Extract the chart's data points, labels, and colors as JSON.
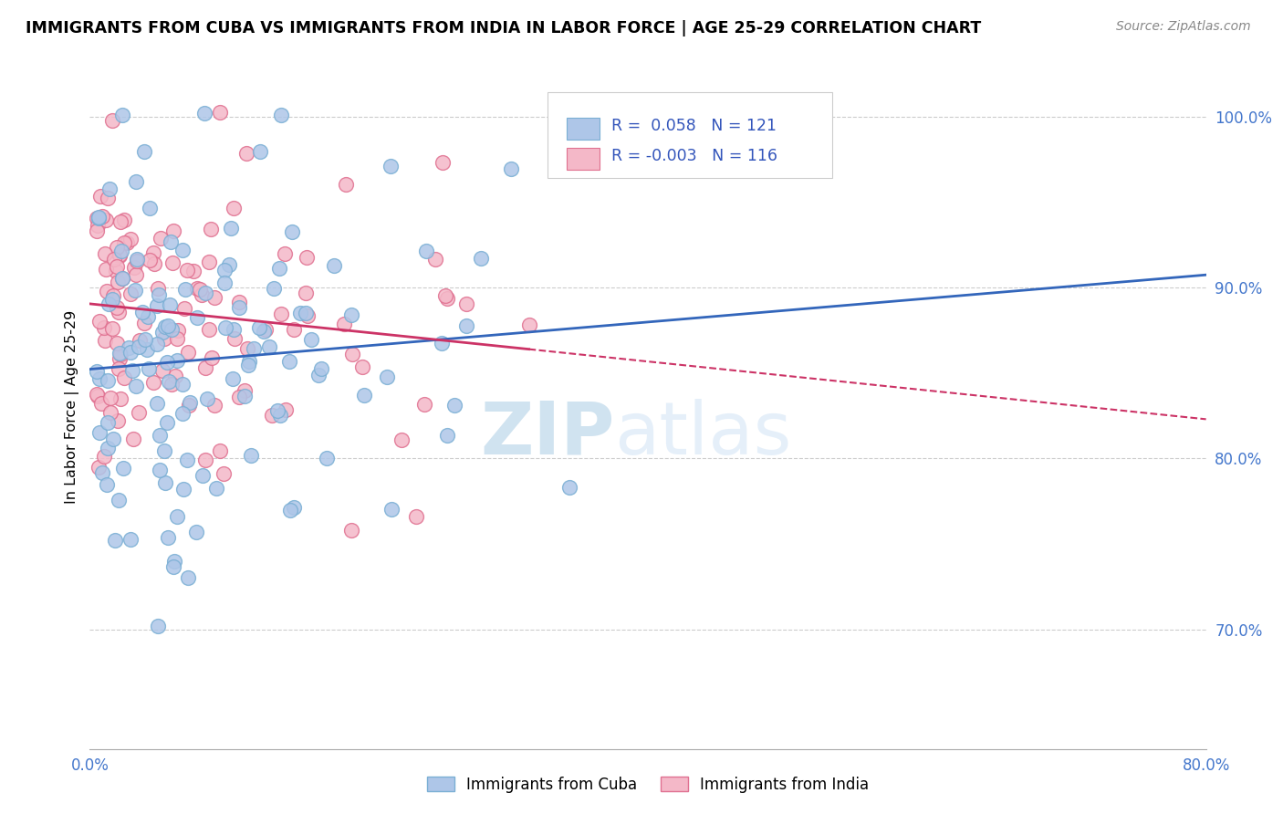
{
  "title": "IMMIGRANTS FROM CUBA VS IMMIGRANTS FROM INDIA IN LABOR FORCE | AGE 25-29 CORRELATION CHART",
  "source": "Source: ZipAtlas.com",
  "ylabel": "In Labor Force | Age 25-29",
  "ytick_labels": [
    "100.0%",
    "90.0%",
    "80.0%",
    "70.0%"
  ],
  "ytick_values": [
    1.0,
    0.9,
    0.8,
    0.7
  ],
  "xlim": [
    0.0,
    0.8
  ],
  "ylim": [
    0.63,
    1.03
  ],
  "cuba_color": "#aec6e8",
  "cuba_edge_color": "#7aafd4",
  "india_color": "#f4b8c8",
  "india_edge_color": "#e07090",
  "trendline_cuba_color": "#3366bb",
  "trendline_india_color": "#cc3366",
  "watermark_zip": "ZIP",
  "watermark_atlas": "atlas",
  "legend_R_cuba": "R =  0.058",
  "legend_N_cuba": "N = 121",
  "legend_R_india": "R = -0.003",
  "legend_N_india": "N = 116",
  "legend_label_cuba": "Immigrants from Cuba",
  "legend_label_india": "Immigrants from India",
  "cuba_seed": 7,
  "india_seed": 13,
  "cuba_n": 121,
  "india_n": 116,
  "cuba_R": 0.058,
  "india_R": -0.003
}
